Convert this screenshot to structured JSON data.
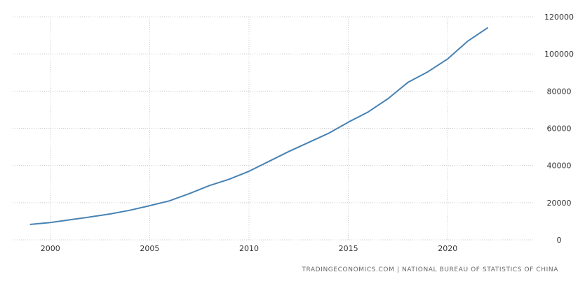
{
  "source_text": "TRADINGECONOMICS.COM  |  NATIONAL BUREAU OF STATISTICS OF CHINA",
  "chart_data": {
    "type": "line",
    "title": "",
    "xlabel": "",
    "ylabel": "",
    "xlim": [
      1998.1,
      2024.3
    ],
    "ylim": [
      0,
      120000
    ],
    "x_ticks": [
      "2000",
      "2005",
      "2010",
      "2015",
      "2020"
    ],
    "y_ticks": [
      "0",
      "20000",
      "40000",
      "60000",
      "80000",
      "100000",
      "120000"
    ],
    "grid": true,
    "legend": "none",
    "series": [
      {
        "color": "#4682b4",
        "x": [
          1999,
          2000,
          2001,
          2002,
          2003,
          2004,
          2005,
          2006,
          2007,
          2008,
          2009,
          2010,
          2011,
          2012,
          2013,
          2014,
          2015,
          2016,
          2017,
          2018,
          2019,
          2020,
          2021,
          2022
        ],
        "values": [
          8300,
          9300,
          10800,
          12300,
          13900,
          15900,
          18400,
          21000,
          24900,
          29200,
          32600,
          36900,
          42200,
          47500,
          52400,
          57300,
          63300,
          68800,
          76000,
          84700,
          90400,
          97300,
          106800,
          114000
        ]
      }
    ]
  }
}
